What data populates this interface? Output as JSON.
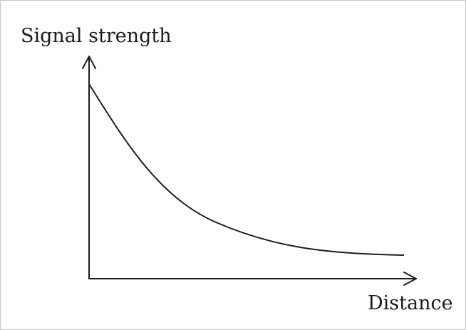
{
  "diagram": {
    "y_axis_label": "Signal strength",
    "x_axis_label": "Distance",
    "curve": "decreasing decay curve that levels off",
    "colors": {
      "background": "#ffffff",
      "ink": "#1e1e1e",
      "frame": "#c8c8c8"
    }
  }
}
